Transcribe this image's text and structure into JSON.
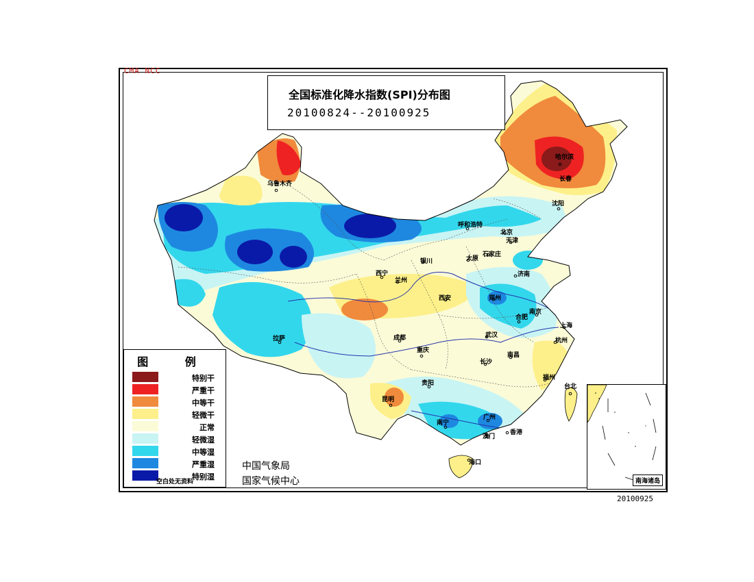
{
  "org_label": "CMA NCC",
  "title": "全国标准化降水指数(SPI)分布图",
  "period": "20100824--20100925",
  "legend": {
    "title": "图 例",
    "items": [
      {
        "label": "特别干",
        "color": "#8b1a1a"
      },
      {
        "label": "严重干",
        "color": "#ee2222"
      },
      {
        "label": "中等干",
        "color": "#f08a3c"
      },
      {
        "label": "轻微干",
        "color": "#fdf08a"
      },
      {
        "label": "正常",
        "color": "#fbfbd8"
      },
      {
        "label": "轻微湿",
        "color": "#c8f4f4"
      },
      {
        "label": "中等湿",
        "color": "#33d7ec"
      },
      {
        "label": "严重湿",
        "color": "#1e88e0"
      },
      {
        "label": "特别湿",
        "color": "#0a1aa8"
      }
    ],
    "note": "空白处无资料"
  },
  "agency": {
    "line1": "中国气象局",
    "line2": "国家气候中心"
  },
  "inset_label": "南海诸岛",
  "date_code": "20100925",
  "cities": {
    "wulumuqi": "乌鲁木齐",
    "haerbin": "哈尔滨",
    "changchun": "长春",
    "shenyang": "沈阳",
    "huhehaote": "呼和浩特",
    "beijing": "北京",
    "tianjin": "天津",
    "shijiazhuang": "石家庄",
    "taiyuan": "太原",
    "yinchuan": "银川",
    "xining": "西宁",
    "lanzhou": "兰州",
    "jinan": "济南",
    "zhengzhou": "郑州",
    "xian": "西安",
    "hefei": "合肥",
    "nanjing": "南京",
    "shanghai": "上海",
    "lasa": "拉萨",
    "chengdu": "成都",
    "chongqing": "重庆",
    "wuhan": "武汉",
    "hangzhou": "杭州",
    "changsha": "长沙",
    "nanchang": "南昌",
    "fuzhou": "福州",
    "guiyang": "贵阳",
    "kunming": "昆明",
    "taibei": "台北",
    "nanning": "南宁",
    "guangzhou": "广州",
    "xianggang": "香港",
    "aomen": "澳门",
    "haikou": "海口"
  }
}
